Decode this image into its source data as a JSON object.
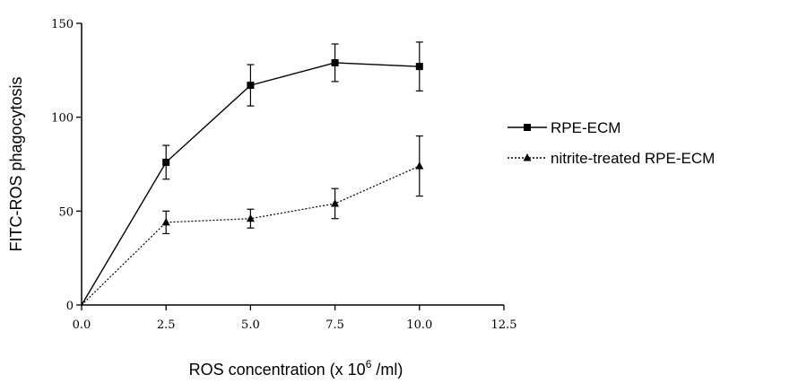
{
  "chart_data": {
    "type": "line",
    "xlabel_main": "ROS concentration (x 10",
    "xlabel_sup": "6",
    "xlabel_tail": " /ml)",
    "ylabel": "FITC-ROS phagocytosis",
    "xlim": [
      0,
      12.5
    ],
    "ylim": [
      0,
      150
    ],
    "xticks": [
      0.0,
      2.5,
      5.0,
      7.5,
      10.0,
      12.5
    ],
    "xtick_labels": [
      "0.0",
      "2.5",
      "5.0",
      "7.5",
      "10.0",
      "12.5"
    ],
    "yticks": [
      0,
      50,
      100,
      150
    ],
    "ytick_labels": [
      "0",
      "50",
      "100",
      "150"
    ],
    "legend_position": "right",
    "grid": false,
    "series": [
      {
        "name": "RPE-ECM",
        "marker": "square",
        "line_style": "solid",
        "x": [
          0,
          2.5,
          5.0,
          7.5,
          10.0
        ],
        "y": [
          0,
          76,
          117,
          129,
          127
        ],
        "err": [
          null,
          9,
          11,
          10,
          13
        ]
      },
      {
        "name": "nitrite-treated RPE-ECM",
        "marker": "triangle",
        "line_style": "dotted",
        "x": [
          0,
          2.5,
          5.0,
          7.5,
          10.0
        ],
        "y": [
          0,
          44,
          46,
          54,
          74
        ],
        "err": [
          null,
          6,
          5,
          8,
          16
        ]
      }
    ]
  }
}
